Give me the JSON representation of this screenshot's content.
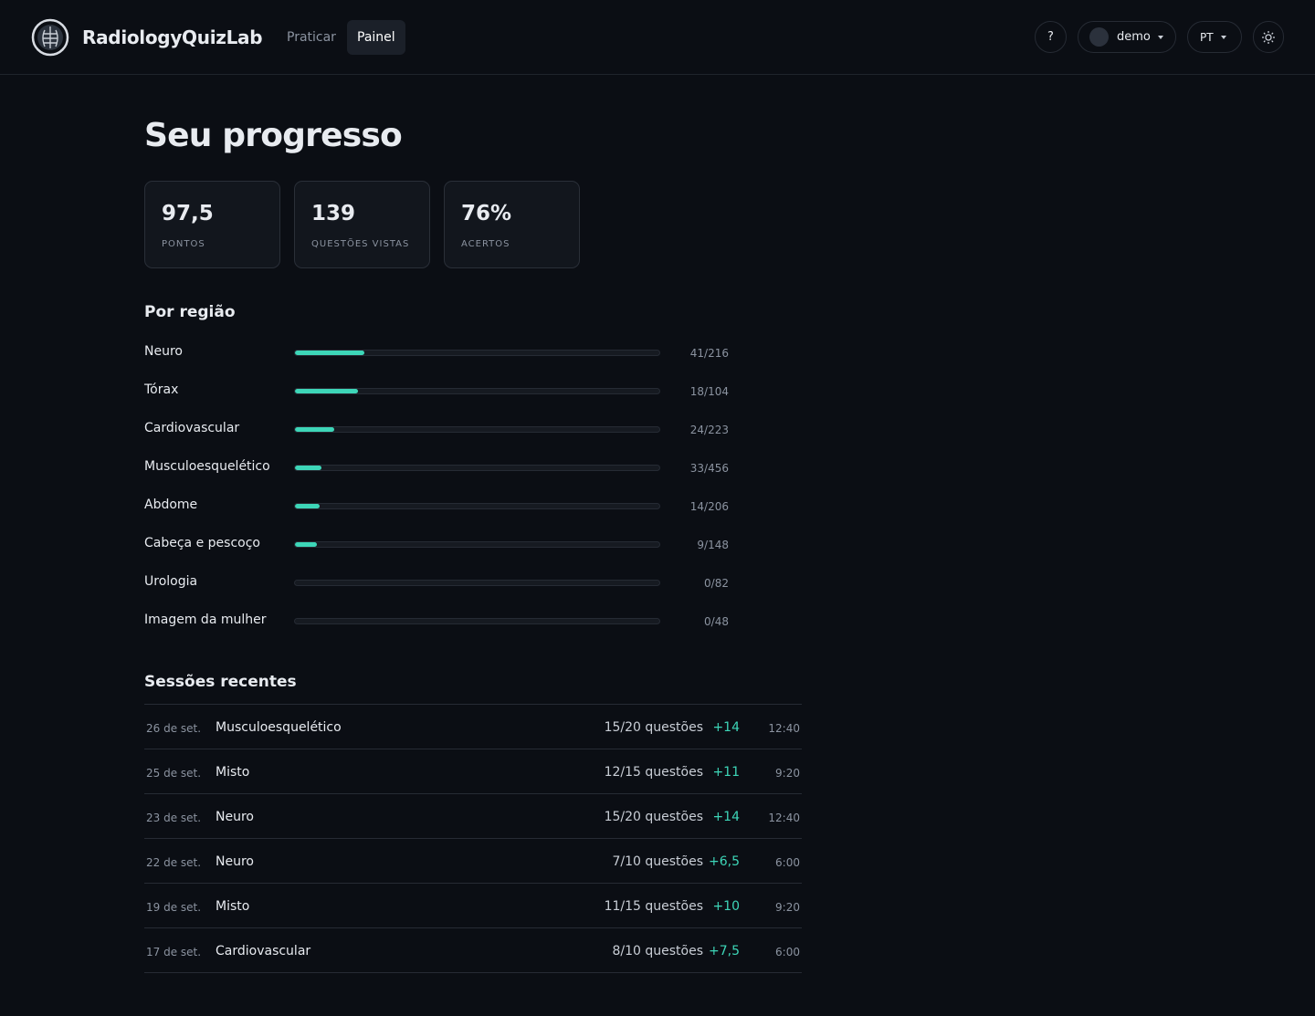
{
  "header": {
    "brand": "RadiologyQuizLab",
    "nav": [
      "Praticar",
      "Painel"
    ],
    "help": "?",
    "user": "demo",
    "language": "PT"
  },
  "page": {
    "title": "Seu progresso"
  },
  "stats": [
    {
      "value": "97,5",
      "label": "PONTOS"
    },
    {
      "value": "139",
      "label": "QUESTÕES VISTAS"
    },
    {
      "value": "76%",
      "label": "ACERTOS"
    }
  ],
  "regions": {
    "title": "Por região",
    "items": [
      {
        "name": "Neuro",
        "done": 41,
        "total": 216,
        "label": "41/216"
      },
      {
        "name": "Tórax",
        "done": 18,
        "total": 104,
        "label": "18/104"
      },
      {
        "name": "Cardiovascular",
        "done": 24,
        "total": 223,
        "label": "24/223"
      },
      {
        "name": "Musculoesquelético",
        "done": 33,
        "total": 456,
        "label": "33/456"
      },
      {
        "name": "Abdome",
        "done": 14,
        "total": 206,
        "label": "14/206"
      },
      {
        "name": "Cabeça e pescoço",
        "done": 9,
        "total": 148,
        "label": "9/148"
      },
      {
        "name": "Urologia",
        "done": 0,
        "total": 82,
        "label": "0/82"
      },
      {
        "name": "Imagem da mulher",
        "done": 0,
        "total": 48,
        "label": "0/48"
      }
    ]
  },
  "sessions": {
    "title": "Sessões recentes",
    "rows": [
      {
        "date": "26 de set.",
        "topic": "Musculoesquelético",
        "score": "15/20 questões",
        "points": "+14",
        "time": "12:40"
      },
      {
        "date": "25 de set.",
        "topic": "Misto",
        "score": "12/15 questões",
        "points": "+11",
        "time": "9:20"
      },
      {
        "date": "23 de set.",
        "topic": "Neuro",
        "score": "15/20 questões",
        "points": "+14",
        "time": "12:40"
      },
      {
        "date": "22 de set.",
        "topic": "Neuro",
        "score": "7/10 questões",
        "points": "+6,5",
        "time": "6:00"
      },
      {
        "date": "19 de set.",
        "topic": "Misto",
        "score": "11/15 questões",
        "points": "+10",
        "time": "9:20"
      },
      {
        "date": "17 de set.",
        "topic": "Cardiovascular",
        "score": "8/10 questões",
        "points": "+7,5",
        "time": "6:00"
      }
    ]
  }
}
